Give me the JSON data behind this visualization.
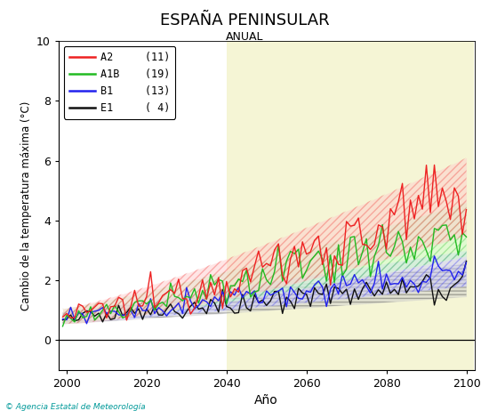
{
  "title": "ESPAÑA PENINSULAR",
  "subtitle": "ANUAL",
  "xlabel": "Año",
  "ylabel": "Cambio de la temperatura máxima (°C)",
  "xlim": [
    1998,
    2102
  ],
  "ylim": [
    -1,
    10
  ],
  "yticks": [
    0,
    2,
    4,
    6,
    8,
    10
  ],
  "xticks": [
    2000,
    2020,
    2040,
    2060,
    2080,
    2100
  ],
  "bg_shade1_start": 2040,
  "bg_shade1_end": 2072,
  "bg_shade2_start": 2078,
  "bg_shade2_end": 2102,
  "bg_color": "#f5f5d5",
  "legend_labels": [
    "A2",
    "A1B",
    "B1",
    "E1"
  ],
  "legend_counts": [
    "(11)",
    "(19)",
    "(13)",
    "( 4)"
  ],
  "colors": [
    "#ee2222",
    "#22bb22",
    "#2222ee",
    "#111111"
  ],
  "band_colors": [
    "#ffcccc",
    "#ccffcc",
    "#ccccff",
    "#cccccc"
  ],
  "start_year": 1999,
  "end_year": 2100,
  "seed": 12345
}
